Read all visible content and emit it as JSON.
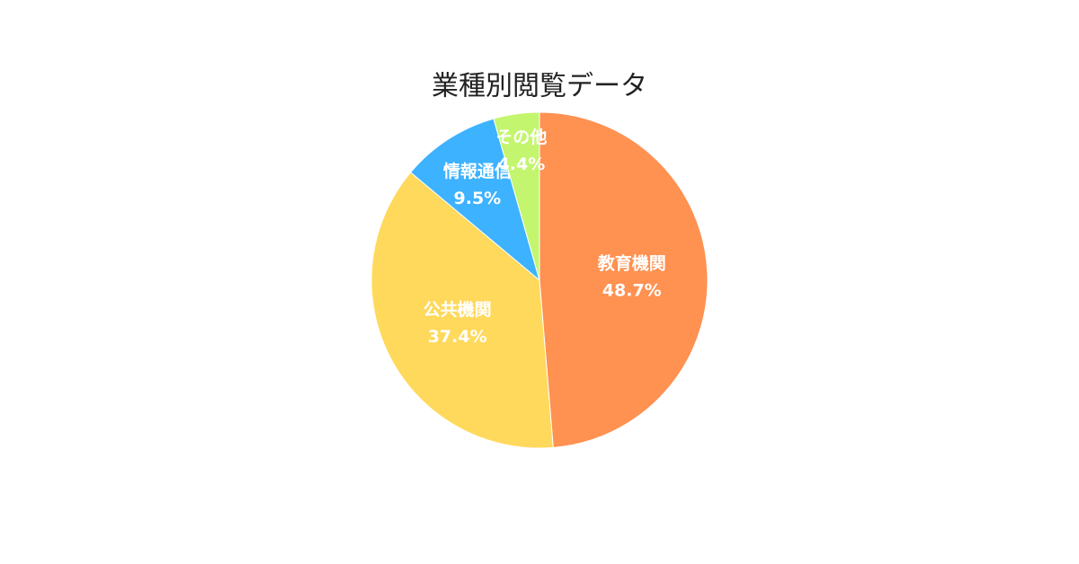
{
  "chart_data": {
    "type": "pie",
    "title": "業種別閲覧データ",
    "categories": [
      "教育機関",
      "公共機関",
      "情報通信",
      "その他"
    ],
    "values": [
      48.7,
      37.4,
      9.5,
      4.4
    ],
    "value_labels": [
      "48.7%",
      "37.4%",
      "9.5%",
      "4.4%"
    ],
    "colors": [
      "#FF9151",
      "#FFD95C",
      "#3DB2FF",
      "#C4F56E"
    ]
  }
}
